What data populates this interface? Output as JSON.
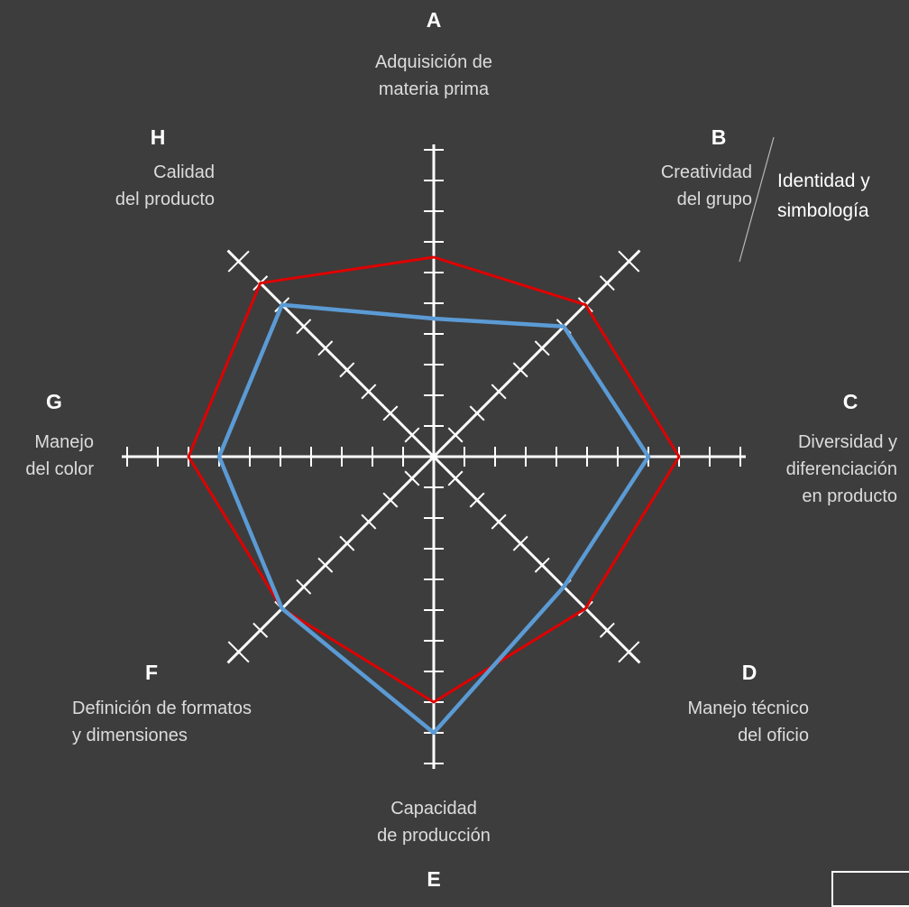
{
  "chart_data": {
    "type": "radar",
    "axes": [
      {
        "letter": "A",
        "label": [
          "Adquisición de",
          "materia prima"
        ]
      },
      {
        "letter": "B",
        "label": [
          "Creatividad",
          "del grupo"
        ]
      },
      {
        "letter": "C",
        "label": [
          "Diversidad y",
          "diferenciación",
          "en producto"
        ]
      },
      {
        "letter": "D",
        "label": [
          "Manejo técnico",
          "del oficio"
        ]
      },
      {
        "letter": "E",
        "label": [
          "Capacidad",
          "de producción"
        ]
      },
      {
        "letter": "F",
        "label": [
          "Definición de formatos",
          "y dimensiones"
        ]
      },
      {
        "letter": "G",
        "label": [
          "Manejo",
          "del color"
        ]
      },
      {
        "letter": "H",
        "label": [
          "Calidad",
          "del producto"
        ]
      }
    ],
    "max_ticks": 10,
    "series": [
      {
        "color": "#e00000",
        "values": [
          6.5,
          7.0,
          8.0,
          7.0,
          8.0,
          7.0,
          8.0,
          8.0
        ]
      },
      {
        "color": "#5b9bd5",
        "values": [
          4.5,
          6.0,
          7.0,
          6.0,
          9.0,
          7.0,
          7.0,
          7.0
        ]
      }
    ]
  },
  "side_note": [
    "Identidad y",
    "simbología"
  ]
}
